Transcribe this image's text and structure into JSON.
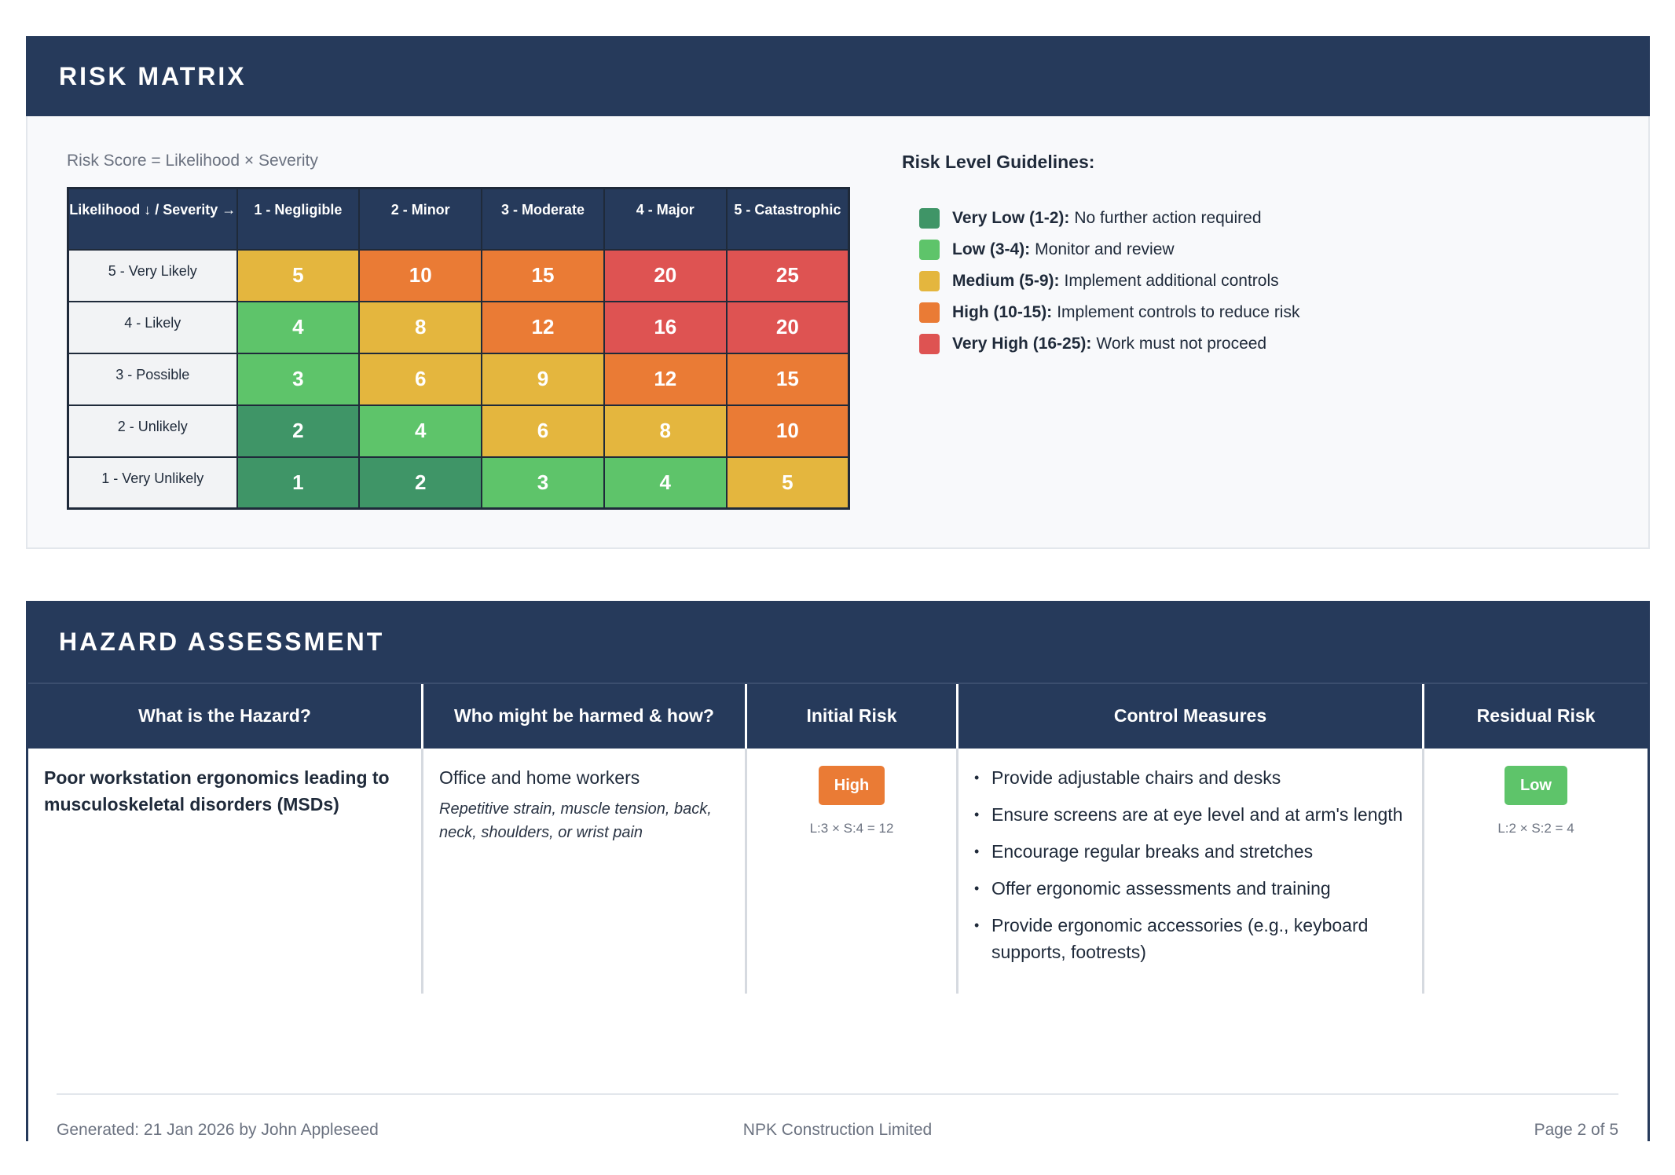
{
  "risk_matrix": {
    "header": "RISK MATRIX",
    "formula": "Risk Score = Likelihood × Severity",
    "corner_label": "Likelihood ↓ / Severity →",
    "columns": [
      "1 - Negligible",
      "2 - Minor",
      "3 - Moderate",
      "4 - Major",
      "5 - Catastrophic"
    ],
    "rows": [
      {
        "label": "5 - Very Likely",
        "values": [
          "5",
          "10",
          "15",
          "20",
          "25"
        ]
      },
      {
        "label": "4 - Likely",
        "values": [
          "4",
          "8",
          "12",
          "16",
          "20"
        ]
      },
      {
        "label": "3 - Possible",
        "values": [
          "3",
          "6",
          "9",
          "12",
          "15"
        ]
      },
      {
        "label": "2 - Unlikely",
        "values": [
          "2",
          "4",
          "6",
          "8",
          "10"
        ]
      },
      {
        "label": "1 - Very Unlikely",
        "values": [
          "1",
          "2",
          "3",
          "4",
          "5"
        ]
      }
    ],
    "colors": {
      "very_low": "#3f9567",
      "low": "#5ec46a",
      "medium": "#e4b63e",
      "high": "#ea7b35",
      "very_high": "#de5352"
    }
  },
  "guidelines": {
    "title": "Risk Level Guidelines:",
    "items": [
      {
        "level": "Very Low (1-2):",
        "text": "No further action required",
        "color": "#3f9567"
      },
      {
        "level": "Low (3-4):",
        "text": "Monitor and review",
        "color": "#5ec46a"
      },
      {
        "level": "Medium (5-9):",
        "text": "Implement additional controls",
        "color": "#e4b63e"
      },
      {
        "level": "High (10-15):",
        "text": "Implement controls to reduce risk",
        "color": "#ea7b35"
      },
      {
        "level": "Very High (16-25):",
        "text": "Work must not proceed",
        "color": "#de5352"
      }
    ]
  },
  "hazard_assessment": {
    "header": "HAZARD ASSESSMENT",
    "columns": [
      "What is the Hazard?",
      "Who might be harmed & how?",
      "Initial Risk",
      "Control Measures",
      "Residual Risk"
    ],
    "row": {
      "hazard": "Poor workstation ergonomics leading to musculoskeletal disorders (MSDs)",
      "who": "Office and home workers",
      "how": "Repetitive strain, muscle tension, back, neck, shoulders, or wrist pain",
      "initial_risk": {
        "level": "High",
        "calc": "L:3 × S:4 = 12"
      },
      "controls": [
        "Provide adjustable chairs and desks",
        "Ensure screens are at eye level and at arm's length",
        "Encourage regular breaks and stretches",
        "Offer ergonomic assessments and training",
        "Provide ergonomic accessories (e.g., keyboard supports, footrests)"
      ],
      "residual_risk": {
        "level": "Low",
        "calc": "L:2 × S:2 = 4"
      }
    }
  },
  "footer": {
    "generated": "Generated: 21 Jan 2026 by John Appleseed",
    "company": "NPK Construction Limited",
    "page": "Page 2 of 5"
  }
}
